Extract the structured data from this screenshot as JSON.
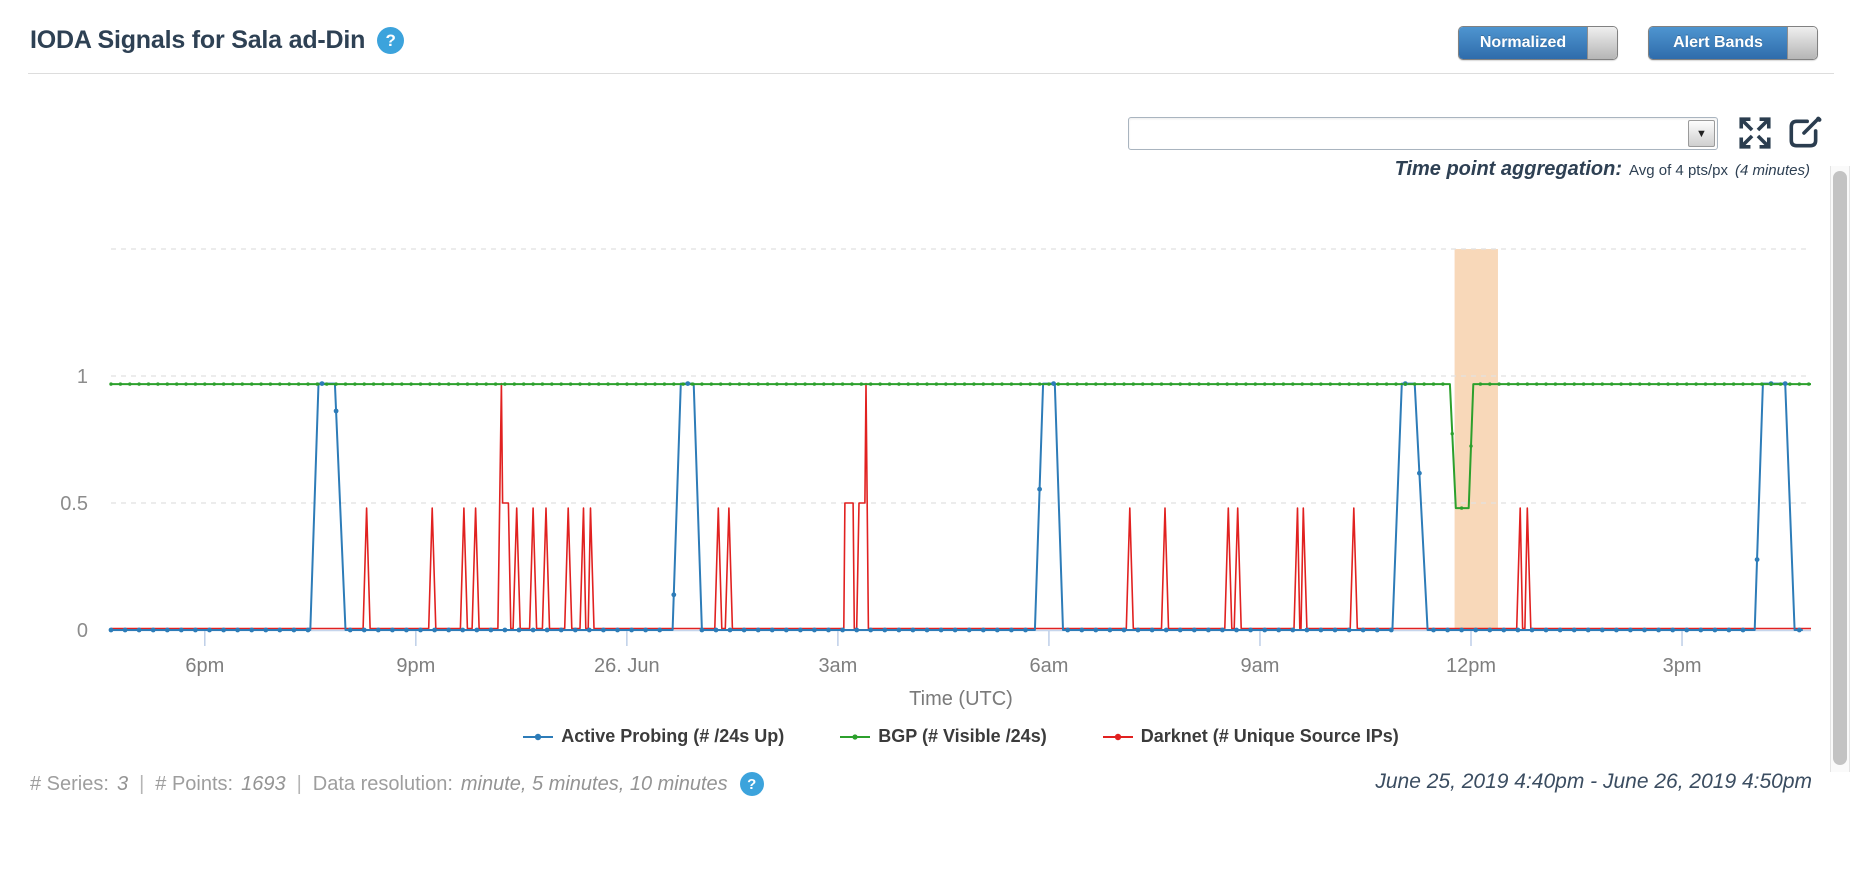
{
  "header": {
    "title": "IODA Signals for Sala ad-Din",
    "help_icon": "?"
  },
  "toggles": {
    "normalized_label": "Normalized",
    "alert_bands_label": "Alert Bands"
  },
  "controls": {
    "series_select_value": "",
    "dropdown_arrow": "▼"
  },
  "aggregation": {
    "label": "Time point aggregation:",
    "value": "Avg of 4 pts/px",
    "detail": "(4 minutes)"
  },
  "footer": {
    "series_label": "# Series:",
    "series_value": "3",
    "points_label": "# Points:",
    "points_value": "1693",
    "resolution_label": "Data resolution:",
    "resolution_value": "minute, 5 minutes, 10 minutes",
    "separator": "|",
    "help_icon": "?",
    "date_range": "June 25, 2019 4:40pm - June 26, 2019 4:50pm"
  },
  "colors": {
    "accent_blue": "#3ca3dc",
    "title_navy": "#2e4154",
    "icon_navy": "#2b3d4f",
    "grid": "#e1e1e1",
    "axis_line": "#c5d5ec",
    "tick": "#b9cbe6",
    "axis_text": "#7f7f7f"
  },
  "chart_data": {
    "type": "line",
    "title": "",
    "xlabel": "Time (UTC)",
    "ylabel": "",
    "x_unit": "minutes since June 25, 2019 4:40pm UTC",
    "x_range": [
      0,
      1450
    ],
    "y_range": [
      0,
      1.5
    ],
    "grid": "dashed horizontal at 0.5, 1.0, 1.5",
    "legend_position": "bottom-center",
    "y_ticks": [
      {
        "v": 0,
        "label": "0"
      },
      {
        "v": 0.5,
        "label": "0.5"
      },
      {
        "v": 1,
        "label": "1"
      }
    ],
    "x_ticks": [
      {
        "t": 80,
        "label": "6pm"
      },
      {
        "t": 260,
        "label": "9pm"
      },
      {
        "t": 440,
        "label": "26. Jun"
      },
      {
        "t": 620,
        "label": "3am"
      },
      {
        "t": 800,
        "label": "6am"
      },
      {
        "t": 980,
        "label": "9am"
      },
      {
        "t": 1160,
        "label": "12pm"
      },
      {
        "t": 1340,
        "label": "3pm"
      }
    ],
    "alert_band": {
      "t_start": 1146,
      "t_end": 1183,
      "color": "#f8d8b9"
    },
    "series": [
      {
        "name": "Active Probing (# /24s Up)",
        "color": "#2d7cb8",
        "marker_every_min": 12,
        "points": [
          [
            0,
            0
          ],
          [
            170,
            0
          ],
          [
            177,
            0.97
          ],
          [
            191,
            0.97
          ],
          [
            200,
            0
          ],
          [
            479,
            0
          ],
          [
            486,
            0.97
          ],
          [
            497,
            0.97
          ],
          [
            504,
            0
          ],
          [
            788,
            0
          ],
          [
            795,
            0.97
          ],
          [
            805,
            0.97
          ],
          [
            812,
            0
          ],
          [
            1093,
            0
          ],
          [
            1101,
            0.97
          ],
          [
            1112,
            0.97
          ],
          [
            1123,
            0
          ],
          [
            1402,
            0
          ],
          [
            1409,
            0.97
          ],
          [
            1428,
            0.97
          ],
          [
            1436,
            0
          ],
          [
            1443,
            0
          ]
        ]
      },
      {
        "name": "BGP (# Visible /24s)",
        "color": "#2ca02c",
        "marker_every_min": 8,
        "points": [
          [
            0,
            0.968
          ],
          [
            1142,
            0.968
          ],
          [
            1147,
            0.48
          ],
          [
            1158,
            0.48
          ],
          [
            1162,
            0.968
          ],
          [
            1450,
            0.968
          ]
        ]
      },
      {
        "name": "Darknet (# Unique Source IPs)",
        "color": "#e12120",
        "points": [
          [
            0,
            0.006
          ],
          [
            215,
            0.006
          ],
          [
            218,
            0.48
          ],
          [
            221,
            0.006
          ],
          [
            271,
            0.006
          ],
          [
            274,
            0.48
          ],
          [
            277,
            0.006
          ],
          [
            298,
            0.006
          ],
          [
            301,
            0.48
          ],
          [
            304,
            0.006
          ],
          [
            308,
            0.006
          ],
          [
            311,
            0.48
          ],
          [
            314,
            0.006
          ],
          [
            330,
            0.006
          ],
          [
            333,
            0.97
          ],
          [
            334,
            0.5
          ],
          [
            339,
            0.5
          ],
          [
            341,
            0.006
          ],
          [
            343,
            0.006
          ],
          [
            346,
            0.48
          ],
          [
            349,
            0.006
          ],
          [
            357,
            0.006
          ],
          [
            360,
            0.48
          ],
          [
            363,
            0.006
          ],
          [
            368,
            0.006
          ],
          [
            371,
            0.48
          ],
          [
            374,
            0.006
          ],
          [
            387,
            0.006
          ],
          [
            390,
            0.48
          ],
          [
            393,
            0.006
          ],
          [
            400,
            0.006
          ],
          [
            403,
            0.48
          ],
          [
            405,
            0.006
          ],
          [
            407,
            0.006
          ],
          [
            409,
            0.48
          ],
          [
            412,
            0.006
          ],
          [
            515,
            0.006
          ],
          [
            518,
            0.48
          ],
          [
            521,
            0.006
          ],
          [
            524,
            0.006
          ],
          [
            527,
            0.48
          ],
          [
            530,
            0.006
          ],
          [
            625,
            0.006
          ],
          [
            626,
            0.5
          ],
          [
            633,
            0.5
          ],
          [
            634,
            0.006
          ],
          [
            636,
            0.006
          ],
          [
            638,
            0.5
          ],
          [
            643,
            0.5
          ],
          [
            644,
            0.97
          ],
          [
            646,
            0.006
          ],
          [
            866,
            0.006
          ],
          [
            869,
            0.48
          ],
          [
            872,
            0.006
          ],
          [
            896,
            0.006
          ],
          [
            899,
            0.48
          ],
          [
            902,
            0.006
          ],
          [
            950,
            0.006
          ],
          [
            953,
            0.48
          ],
          [
            956,
            0.006
          ],
          [
            958,
            0.006
          ],
          [
            961,
            0.48
          ],
          [
            964,
            0.006
          ],
          [
            1009,
            0.006
          ],
          [
            1012,
            0.48
          ],
          [
            1014,
            0.006
          ],
          [
            1015,
            0.006
          ],
          [
            1017,
            0.48
          ],
          [
            1020,
            0.006
          ],
          [
            1057,
            0.006
          ],
          [
            1060,
            0.48
          ],
          [
            1063,
            0.006
          ],
          [
            1199,
            0.006
          ],
          [
            1202,
            0.48
          ],
          [
            1204,
            0.006
          ],
          [
            1206,
            0.006
          ],
          [
            1208,
            0.48
          ],
          [
            1211,
            0.006
          ],
          [
            1450,
            0.006
          ]
        ]
      }
    ]
  }
}
